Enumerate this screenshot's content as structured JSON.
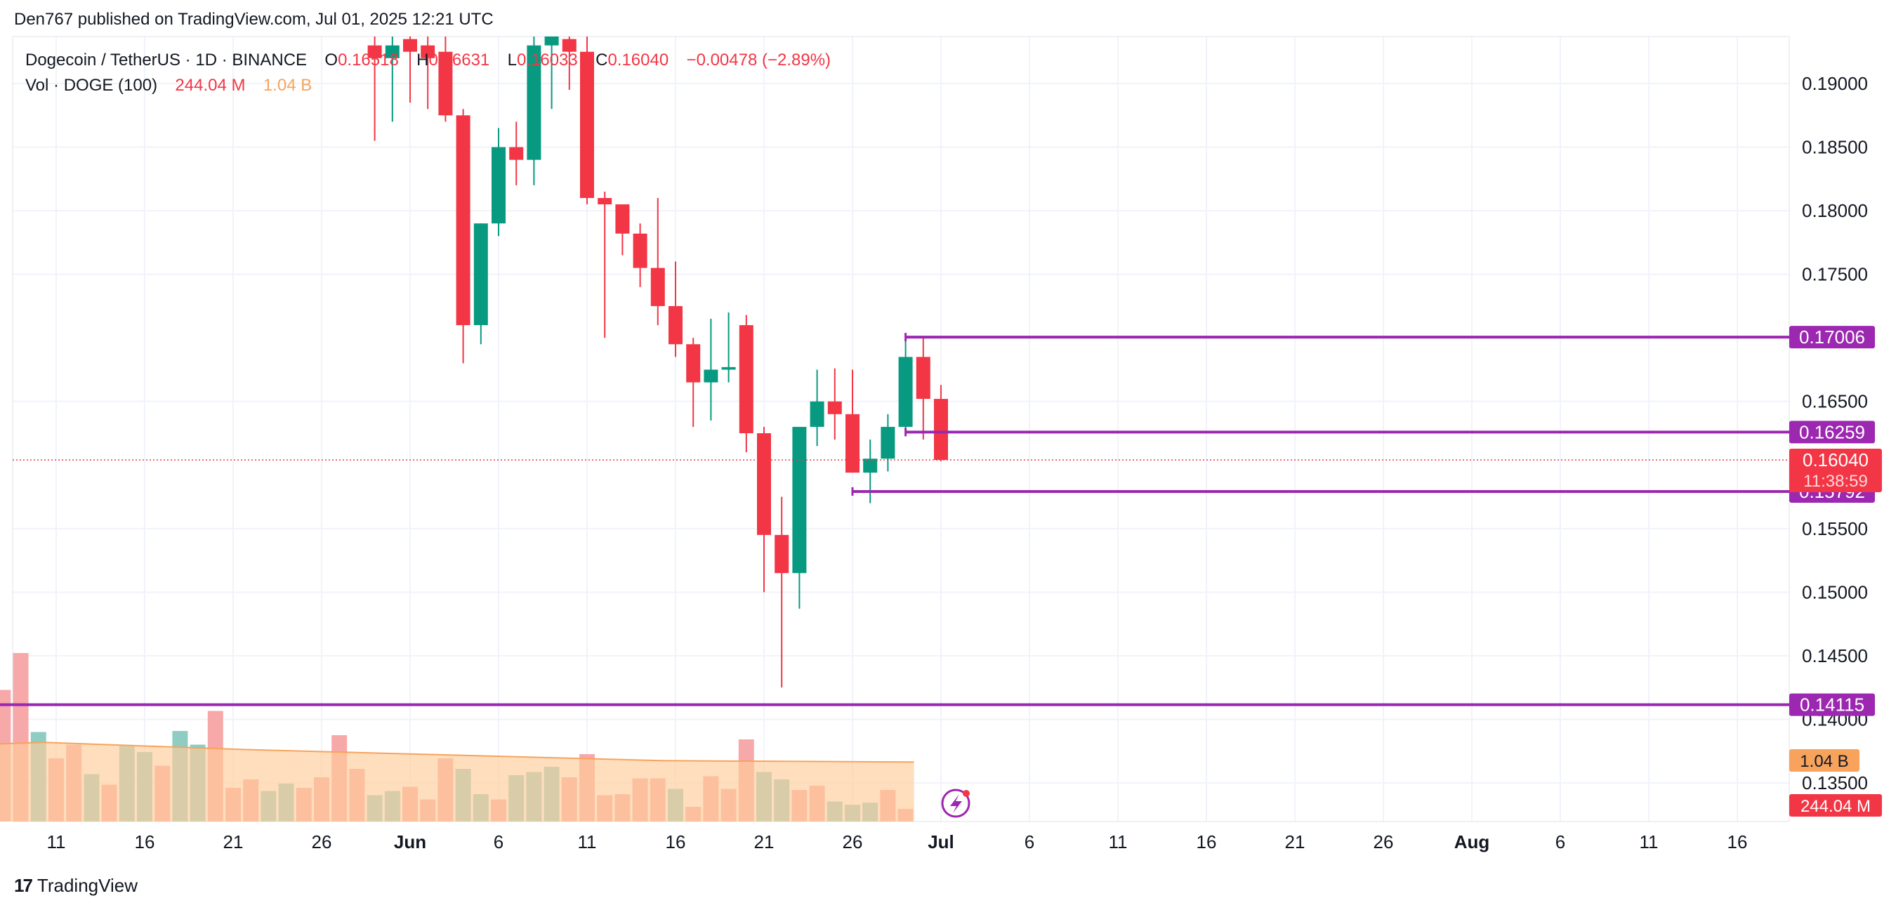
{
  "attribution": "Den767 published on TradingView.com, Jul 01, 2025 12:21 UTC",
  "legend": {
    "symbol": "Dogecoin / TetherUS · 1D · BINANCE",
    "o_label": "O",
    "o_val": "0.16518",
    "h_label": "H",
    "h_val": "0.16631",
    "l_label": "L",
    "l_val": "0.16033",
    "c_label": "C",
    "c_val": "0.16040",
    "change": "−0.00478 (−2.89%)",
    "vol_label": "Vol · DOGE (100)",
    "vol_val": "244.04 M",
    "vol_ma_val": "1.04 B"
  },
  "footer": {
    "brand": "TradingView",
    "logo": "17"
  },
  "colors": {
    "up": "#089981",
    "down": "#f23645",
    "up_vol": "#8fcdc3",
    "down_vol": "#f7a9a9",
    "level": "#9c27b0",
    "vol_ma_fill": "#ffcc99",
    "vol_ma_line": "#f7a35c",
    "grid": "#f0f3fa",
    "text": "#131722"
  },
  "chart_data": {
    "type": "candlestick",
    "interval": "1D",
    "price_axis": {
      "ticks": [
        "0.19000",
        "0.18500",
        "0.18000",
        "0.17500",
        "0.16500",
        "0.15500",
        "0.15000",
        "0.14500",
        "0.14000",
        "0.13500"
      ],
      "range": [
        0.1322,
        0.1933
      ]
    },
    "time_axis": {
      "labels": [
        "11",
        "16",
        "21",
        "26",
        "Jun",
        "6",
        "11",
        "16",
        "21",
        "26",
        "Jul",
        "6",
        "11",
        "16",
        "21",
        "26",
        "Aug",
        "6",
        "11",
        "16"
      ]
    },
    "ohlc": [
      {
        "date": "2025-05-29",
        "o": 0.193,
        "h": 0.194,
        "l": 0.1855,
        "c": 0.192
      },
      {
        "date": "2025-05-30",
        "o": 0.192,
        "h": 0.195,
        "l": 0.187,
        "c": 0.193
      },
      {
        "date": "2025-05-31",
        "o": 0.1935,
        "h": 0.195,
        "l": 0.1885,
        "c": 0.1925
      },
      {
        "date": "2025-06-01",
        "o": 0.193,
        "h": 0.1945,
        "l": 0.188,
        "c": 0.192
      },
      {
        "date": "2025-06-02",
        "o": 0.1925,
        "h": 0.1945,
        "l": 0.187,
        "c": 0.1875
      },
      {
        "date": "2025-06-03",
        "o": 0.1875,
        "h": 0.188,
        "l": 0.168,
        "c": 0.171
      },
      {
        "date": "2025-06-04",
        "o": 0.171,
        "h": 0.179,
        "l": 0.1695,
        "c": 0.179
      },
      {
        "date": "2025-06-05",
        "o": 0.179,
        "h": 0.1865,
        "l": 0.178,
        "c": 0.185
      },
      {
        "date": "2025-06-06",
        "o": 0.185,
        "h": 0.187,
        "l": 0.182,
        "c": 0.184
      },
      {
        "date": "2025-06-07",
        "o": 0.184,
        "h": 0.194,
        "l": 0.182,
        "c": 0.193
      },
      {
        "date": "2025-06-08",
        "o": 0.193,
        "h": 0.195,
        "l": 0.188,
        "c": 0.194
      },
      {
        "date": "2025-06-09",
        "o": 0.1935,
        "h": 0.1945,
        "l": 0.1895,
        "c": 0.1925
      },
      {
        "date": "2025-06-10",
        "o": 0.1925,
        "h": 0.1945,
        "l": 0.1805,
        "c": 0.181
      },
      {
        "date": "2025-06-11",
        "o": 0.181,
        "h": 0.1815,
        "l": 0.17,
        "c": 0.1805
      },
      {
        "date": "2025-06-12",
        "o": 0.1805,
        "h": 0.1805,
        "l": 0.1765,
        "c": 0.1782
      },
      {
        "date": "2025-06-13",
        "o": 0.1782,
        "h": 0.179,
        "l": 0.174,
        "c": 0.1755
      },
      {
        "date": "2025-06-14",
        "o": 0.1755,
        "h": 0.181,
        "l": 0.171,
        "c": 0.1725
      },
      {
        "date": "2025-06-15",
        "o": 0.1725,
        "h": 0.176,
        "l": 0.1685,
        "c": 0.1695
      },
      {
        "date": "2025-06-16",
        "o": 0.1695,
        "h": 0.17,
        "l": 0.163,
        "c": 0.1665
      },
      {
        "date": "2025-06-17",
        "o": 0.1665,
        "h": 0.1715,
        "l": 0.1635,
        "c": 0.1675
      },
      {
        "date": "2025-06-18",
        "o": 0.1675,
        "h": 0.172,
        "l": 0.1665,
        "c": 0.1677
      },
      {
        "date": "2025-06-19",
        "o": 0.171,
        "h": 0.1718,
        "l": 0.161,
        "c": 0.1625
      },
      {
        "date": "2025-06-20",
        "o": 0.1625,
        "h": 0.163,
        "l": 0.15,
        "c": 0.1545
      },
      {
        "date": "2025-06-21",
        "o": 0.1545,
        "h": 0.1575,
        "l": 0.1425,
        "c": 0.1515
      },
      {
        "date": "2025-06-22",
        "o": 0.1515,
        "h": 0.163,
        "l": 0.1487,
        "c": 0.163
      },
      {
        "date": "2025-06-23",
        "o": 0.163,
        "h": 0.1675,
        "l": 0.1615,
        "c": 0.165
      },
      {
        "date": "2025-06-24",
        "o": 0.165,
        "h": 0.1676,
        "l": 0.162,
        "c": 0.164
      },
      {
        "date": "2025-06-25",
        "o": 0.164,
        "h": 0.1675,
        "l": 0.1595,
        "c": 0.1594
      },
      {
        "date": "2025-06-26",
        "o": 0.1594,
        "h": 0.162,
        "l": 0.157,
        "c": 0.1605
      },
      {
        "date": "2025-06-27",
        "o": 0.1605,
        "h": 0.164,
        "l": 0.1595,
        "c": 0.163
      },
      {
        "date": "2025-06-28",
        "o": 0.163,
        "h": 0.17,
        "l": 0.1628,
        "c": 0.1685
      },
      {
        "date": "2025-06-29",
        "o": 0.1685,
        "h": 0.17,
        "l": 0.162,
        "c": 0.1652
      },
      {
        "date": "2025-06-30",
        "o": 0.1652,
        "h": 0.1663,
        "l": 0.1603,
        "c": 0.1604
      }
    ],
    "volume": [
      {
        "date": "2025-05-06",
        "v": 0.95,
        "dir": "up"
      },
      {
        "date": "2025-05-07",
        "v": 1.1,
        "dir": "up"
      },
      {
        "date": "2025-05-08",
        "v": 1.25,
        "dir": "down"
      },
      {
        "date": "2025-05-09",
        "v": 1.6,
        "dir": "down"
      },
      {
        "date": "2025-05-10",
        "v": 0.85,
        "dir": "up"
      },
      {
        "date": "2025-05-11",
        "v": 0.6,
        "dir": "down"
      },
      {
        "date": "2025-05-12",
        "v": 0.73,
        "dir": "down"
      },
      {
        "date": "2025-05-13",
        "v": 0.45,
        "dir": "up"
      },
      {
        "date": "2025-05-14",
        "v": 0.35,
        "dir": "down"
      },
      {
        "date": "2025-05-15",
        "v": 0.72,
        "dir": "up"
      },
      {
        "date": "2025-05-16",
        "v": 0.66,
        "dir": "up"
      },
      {
        "date": "2025-05-17",
        "v": 0.53,
        "dir": "down"
      },
      {
        "date": "2025-05-18",
        "v": 0.86,
        "dir": "up"
      },
      {
        "date": "2025-05-19",
        "v": 0.73,
        "dir": "up"
      },
      {
        "date": "2025-05-20",
        "v": 1.05,
        "dir": "down"
      },
      {
        "date": "2025-05-21",
        "v": 0.32,
        "dir": "down"
      },
      {
        "date": "2025-05-22",
        "v": 0.4,
        "dir": "down"
      },
      {
        "date": "2025-05-23",
        "v": 0.29,
        "dir": "up"
      },
      {
        "date": "2025-05-24",
        "v": 0.36,
        "dir": "up"
      },
      {
        "date": "2025-05-25",
        "v": 0.32,
        "dir": "down"
      },
      {
        "date": "2025-05-26",
        "v": 0.42,
        "dir": "down"
      },
      {
        "date": "2025-05-27",
        "v": 0.82,
        "dir": "down"
      },
      {
        "date": "2025-05-28",
        "v": 0.5,
        "dir": "down"
      },
      {
        "date": "2025-05-29",
        "v": 0.25,
        "dir": "up"
      },
      {
        "date": "2025-05-30",
        "v": 0.29,
        "dir": "up"
      },
      {
        "date": "2025-05-31",
        "v": 0.33,
        "dir": "down"
      },
      {
        "date": "2025-06-01",
        "v": 0.21,
        "dir": "down"
      },
      {
        "date": "2025-06-02",
        "v": 0.6,
        "dir": "down"
      },
      {
        "date": "2025-06-03",
        "v": 0.5,
        "dir": "up"
      },
      {
        "date": "2025-06-04",
        "v": 0.26,
        "dir": "up"
      },
      {
        "date": "2025-06-05",
        "v": 0.21,
        "dir": "down"
      },
      {
        "date": "2025-06-06",
        "v": 0.44,
        "dir": "up"
      },
      {
        "date": "2025-06-07",
        "v": 0.47,
        "dir": "up"
      },
      {
        "date": "2025-06-08",
        "v": 0.52,
        "dir": "up"
      },
      {
        "date": "2025-06-09",
        "v": 0.42,
        "dir": "down"
      },
      {
        "date": "2025-06-10",
        "v": 0.64,
        "dir": "down"
      },
      {
        "date": "2025-06-11",
        "v": 0.25,
        "dir": "down"
      },
      {
        "date": "2025-06-12",
        "v": 0.26,
        "dir": "down"
      },
      {
        "date": "2025-06-13",
        "v": 0.41,
        "dir": "down"
      },
      {
        "date": "2025-06-14",
        "v": 0.41,
        "dir": "down"
      },
      {
        "date": "2025-06-15",
        "v": 0.31,
        "dir": "up"
      },
      {
        "date": "2025-06-16",
        "v": 0.14,
        "dir": "down"
      },
      {
        "date": "2025-06-17",
        "v": 0.43,
        "dir": "down"
      },
      {
        "date": "2025-06-18",
        "v": 0.31,
        "dir": "down"
      },
      {
        "date": "2025-06-19",
        "v": 0.78,
        "dir": "down"
      },
      {
        "date": "2025-06-20",
        "v": 0.47,
        "dir": "up"
      },
      {
        "date": "2025-06-21",
        "v": 0.4,
        "dir": "up"
      },
      {
        "date": "2025-06-22",
        "v": 0.3,
        "dir": "down"
      },
      {
        "date": "2025-06-23",
        "v": 0.34,
        "dir": "down"
      },
      {
        "date": "2025-06-24",
        "v": 0.19,
        "dir": "up"
      },
      {
        "date": "2025-06-25",
        "v": 0.16,
        "dir": "up"
      },
      {
        "date": "2025-06-26",
        "v": 0.18,
        "dir": "up"
      },
      {
        "date": "2025-06-27",
        "v": 0.3,
        "dir": "down"
      },
      {
        "date": "2025-06-28",
        "v": 0.12,
        "dir": "down"
      }
    ],
    "volume_ma": 1.04,
    "levels": [
      {
        "price": 0.17006,
        "label": "0.17006",
        "start_date": "2025-06-28"
      },
      {
        "price": 0.16259,
        "label": "0.16259",
        "start_date": "2025-06-28"
      },
      {
        "price": 0.15792,
        "label": "0.15792",
        "start_date": "2025-06-25"
      },
      {
        "price": 0.14115,
        "label": "0.14115",
        "start_date": "2025-05-06"
      }
    ],
    "last_price": {
      "price": 0.1604,
      "label": "0.16040",
      "countdown": "11:38:59"
    },
    "volume_badges": {
      "ma": "1.04 B",
      "vol": "244.04 M"
    }
  }
}
